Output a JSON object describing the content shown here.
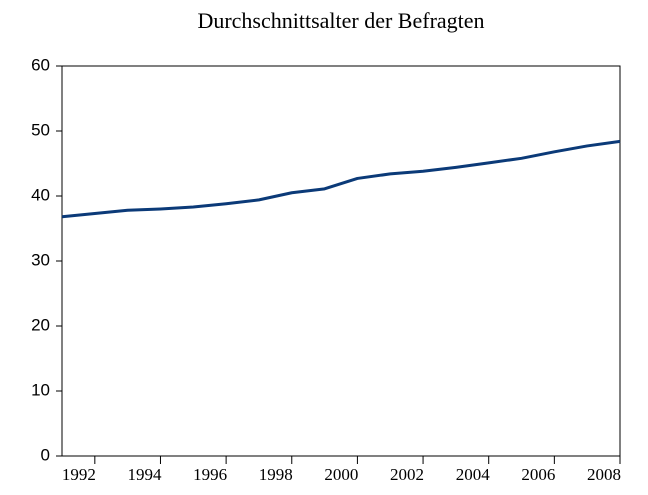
{
  "chart_data": {
    "type": "line",
    "title": "Durchschnittsalter der Befragten",
    "x": [
      1991,
      1992,
      1993,
      1994,
      1995,
      1996,
      1997,
      1998,
      1999,
      2000,
      2001,
      2002,
      2003,
      2004,
      2005,
      2006,
      2007,
      2008
    ],
    "series": [
      {
        "color": "#0b3a78",
        "values": [
          36.8,
          37.3,
          37.8,
          38.0,
          38.3,
          38.8,
          39.4,
          40.5,
          41.1,
          42.7,
          43.4,
          43.8,
          44.4,
          45.1,
          45.8,
          46.8,
          47.7,
          48.4
        ]
      }
    ],
    "xlim": [
      1991,
      2008
    ],
    "xticks": [
      1992,
      1994,
      1996,
      1998,
      2000,
      2002,
      2004,
      2006,
      2008
    ],
    "ylim": [
      0,
      60
    ],
    "yticks": [
      0,
      10,
      20,
      30,
      40,
      50,
      60
    ],
    "grid": false
  }
}
